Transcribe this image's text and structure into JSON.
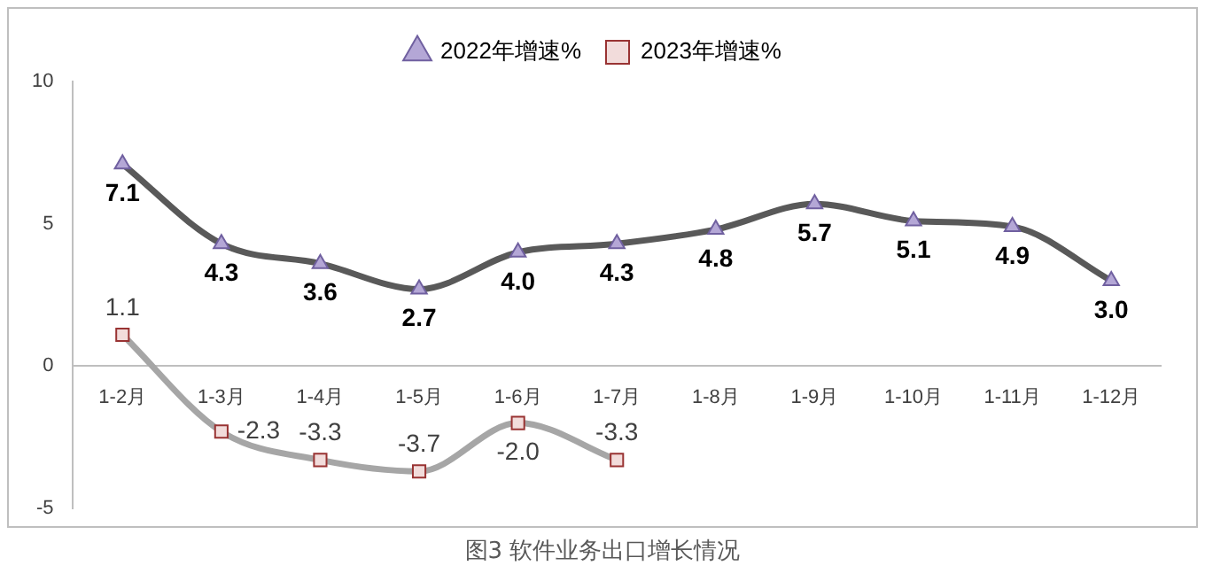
{
  "chart_data": {
    "type": "line",
    "title": "图3  软件业务出口增长情况",
    "categories": [
      "1-2月",
      "1-3月",
      "1-4月",
      "1-5月",
      "1-6月",
      "1-7月",
      "1-8月",
      "1-9月",
      "1-10月",
      "1-11月",
      "1-12月"
    ],
    "series": [
      {
        "name": "2022年增速%",
        "color": "#595959",
        "marker": "triangle",
        "values": [
          7.1,
          4.3,
          3.6,
          2.7,
          4.0,
          4.3,
          4.8,
          5.7,
          5.1,
          4.9,
          3.0
        ],
        "value_labels": [
          "7.1",
          "4.3",
          "3.6",
          "2.7",
          "4.0",
          "4.3",
          "4.8",
          "5.7",
          "5.1",
          "4.9",
          "3.0"
        ]
      },
      {
        "name": "2023年增速%",
        "color": "#a6a6a6",
        "marker": "square",
        "values": [
          1.1,
          -2.3,
          -3.3,
          -3.7,
          -2.0,
          -3.3,
          null,
          null,
          null,
          null,
          null
        ],
        "value_labels": [
          "1.1",
          "-2.3",
          "-3.3",
          "-3.7",
          "-2.0",
          "-3.3",
          null,
          null,
          null,
          null,
          null
        ]
      }
    ],
    "ylim": [
      -5,
      10
    ],
    "yticks": [
      -5,
      0,
      5,
      10
    ],
    "grid": false,
    "legend": "top"
  }
}
